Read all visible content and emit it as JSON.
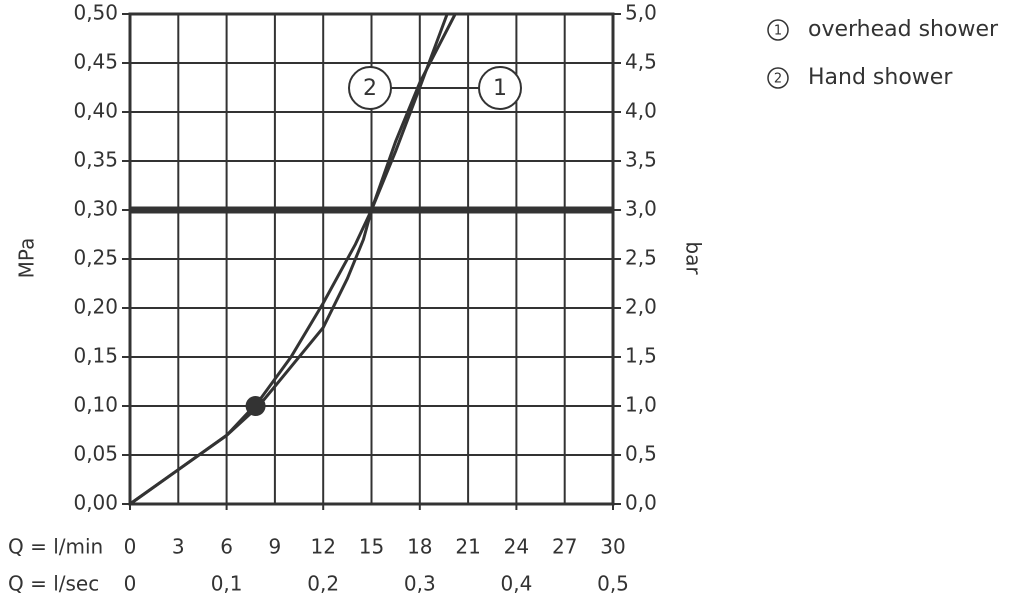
{
  "chart_data": {
    "type": "line",
    "xlabel": "Q = l/min",
    "x2label": "Q = l/sec",
    "ylabel": "MPa",
    "y2label": "bar",
    "xlim": [
      0,
      30
    ],
    "xticks": [
      0,
      3,
      6,
      9,
      12,
      15,
      18,
      21,
      24,
      27,
      30
    ],
    "x2lim": [
      0,
      0.5
    ],
    "x2ticks": [
      0,
      {
        "value": 0.1,
        "label": "0,1"
      },
      {
        "value": 0.2,
        "label": "0,2"
      },
      {
        "value": 0.3,
        "label": "0,3"
      },
      {
        "value": 0.4,
        "label": "0,4"
      },
      {
        "value": 0.5,
        "label": "0,5"
      }
    ],
    "ylim": [
      0,
      0.5
    ],
    "yticks": [
      {
        "value": 0,
        "label": "0,00"
      },
      {
        "value": 0.05,
        "label": "0,05"
      },
      {
        "value": 0.1,
        "label": "0,10"
      },
      {
        "value": 0.15,
        "label": "0,15"
      },
      {
        "value": 0.2,
        "label": "0,20"
      },
      {
        "value": 0.25,
        "label": "0,25"
      },
      {
        "value": 0.3,
        "label": "0,30"
      },
      {
        "value": 0.35,
        "label": "0,35"
      },
      {
        "value": 0.4,
        "label": "0,40"
      },
      {
        "value": 0.45,
        "label": "0,45"
      },
      {
        "value": 0.5,
        "label": "0,50"
      }
    ],
    "y2lim": [
      0,
      5
    ],
    "y2ticks": [
      {
        "value": 0,
        "label": "0,0"
      },
      {
        "value": 0.5,
        "label": "0,5"
      },
      {
        "value": 1,
        "label": "1,0"
      },
      {
        "value": 1.5,
        "label": "1,5"
      },
      {
        "value": 2,
        "label": "2,0"
      },
      {
        "value": 2.5,
        "label": "2,5"
      },
      {
        "value": 3,
        "label": "3,0"
      },
      {
        "value": 3.5,
        "label": "3,5"
      },
      {
        "value": 4,
        "label": "4,0"
      },
      {
        "value": 4.5,
        "label": "4,5"
      },
      {
        "value": 5,
        "label": "5,0"
      }
    ],
    "grid": true,
    "color": "#333333",
    "hline": 0.3,
    "vline": 15,
    "marker": {
      "x": 7.8,
      "y": 0.1
    },
    "series": [
      {
        "name": "overhead shower",
        "marker_label": "1",
        "color": "#333333",
        "x": [
          0,
          3,
          6,
          8,
          10,
          12,
          13.5,
          14.5,
          15,
          16.5,
          18,
          20.2
        ],
        "values": [
          0,
          0.035,
          0.07,
          0.1,
          0.14,
          0.18,
          0.23,
          0.27,
          0.3,
          0.37,
          0.43,
          0.5
        ]
      },
      {
        "name": "Hand shower",
        "marker_label": "2",
        "color": "#333333",
        "x": [
          0,
          3,
          6,
          8,
          10,
          12,
          14,
          15,
          16.5,
          18,
          19.7
        ],
        "values": [
          0,
          0.035,
          0.07,
          0.105,
          0.15,
          0.205,
          0.265,
          0.3,
          0.36,
          0.425,
          0.5
        ]
      }
    ]
  }
}
